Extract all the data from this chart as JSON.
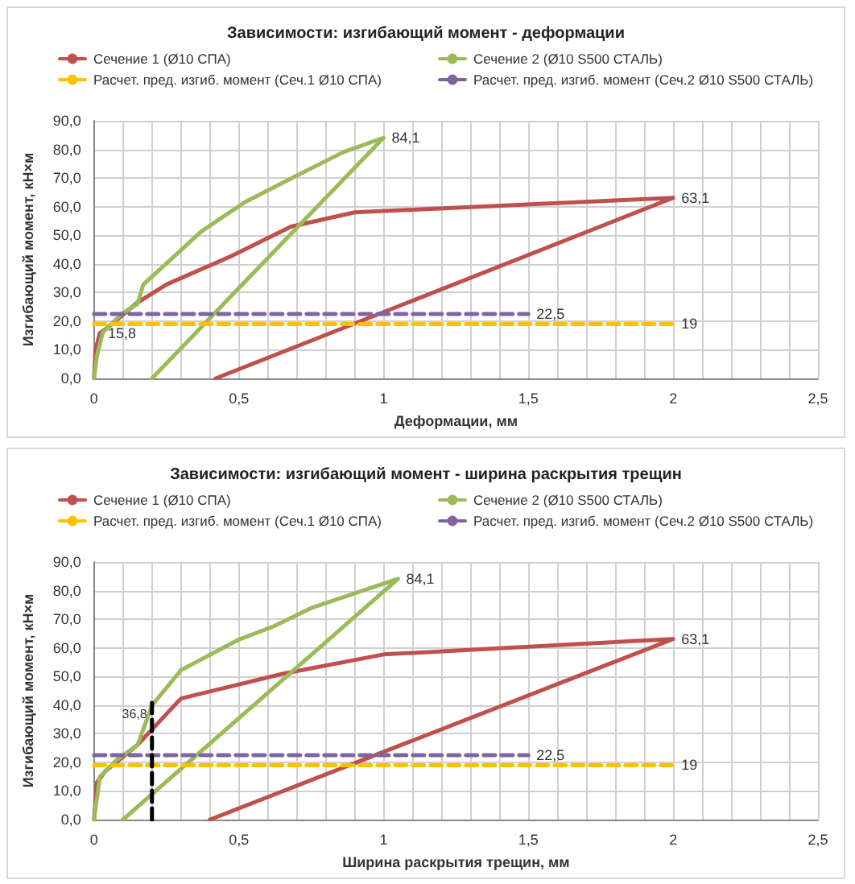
{
  "chart_data": [
    {
      "type": "line",
      "title": "Зависимости: изгибающий момент - деформации",
      "xlabel": "Деформации, мм",
      "ylabel": "Изгибающий момент, кН×м",
      "marker": "none",
      "grid": true,
      "legend": "top",
      "xlim": [
        0,
        2.5
      ],
      "ylim": [
        0,
        90
      ],
      "xticks": [
        {
          "value": 0,
          "label": "0"
        },
        {
          "value": 0.1,
          "label": null
        },
        {
          "value": 0.2,
          "label": null
        },
        {
          "value": 0.3,
          "label": null
        },
        {
          "value": 0.4,
          "label": null
        },
        {
          "value": 0.5,
          "label": "0,5"
        },
        {
          "value": 0.6,
          "label": null
        },
        {
          "value": 0.7,
          "label": null
        },
        {
          "value": 0.8,
          "label": null
        },
        {
          "value": 0.9,
          "label": null
        },
        {
          "value": 1,
          "label": "1"
        },
        {
          "value": 1.1,
          "label": null
        },
        {
          "value": 1.2,
          "label": null
        },
        {
          "value": 1.3,
          "label": null
        },
        {
          "value": 1.4,
          "label": null
        },
        {
          "value": 1.5,
          "label": "1,5"
        },
        {
          "value": 1.6,
          "label": null
        },
        {
          "value": 1.7,
          "label": null
        },
        {
          "value": 1.8,
          "label": null
        },
        {
          "value": 1.9,
          "label": null
        },
        {
          "value": 2,
          "label": "2"
        },
        {
          "value": 2.1,
          "label": null
        },
        {
          "value": 2.2,
          "label": null
        },
        {
          "value": 2.3,
          "label": null
        },
        {
          "value": 2.4,
          "label": null
        },
        {
          "value": 2.5,
          "label": "2,5"
        }
      ],
      "yticks": [
        {
          "value": 0,
          "label": "0,0"
        },
        {
          "value": 10,
          "label": "10,0"
        },
        {
          "value": 20,
          "label": "20,0"
        },
        {
          "value": 30,
          "label": "30,0"
        },
        {
          "value": 40,
          "label": "40,0"
        },
        {
          "value": 50,
          "label": "50,0"
        },
        {
          "value": 60,
          "label": "60,0"
        },
        {
          "value": 70,
          "label": "70,0"
        },
        {
          "value": 80,
          "label": "80,0"
        },
        {
          "value": 90,
          "label": "90,0"
        }
      ],
      "series": [
        {
          "name": "Сечение 1 (Ø10 СПА)",
          "color": "#c0504d",
          "line_style": "solid",
          "x": [
            0,
            0.005,
            0.02,
            0.05,
            0.15,
            0.25,
            0.48,
            0.68,
            0.9,
            2,
            0.42
          ],
          "values": [
            0,
            10,
            15.8,
            18,
            26.5,
            32.8,
            43,
            53,
            58,
            63.1,
            0
          ],
          "value_labels": [
            null,
            null,
            "15,8",
            null,
            null,
            null,
            null,
            null,
            null,
            "63,1",
            null
          ]
        },
        {
          "name": "Сечение 2 (Ø10 S500 СТАЛЬ)",
          "color": "#9bbb59",
          "line_style": "solid",
          "x": [
            0,
            0.01,
            0.03,
            0.095,
            0.15,
            0.17,
            0.27,
            0.37,
            0.52,
            0.68,
            0.86,
            1,
            0.2
          ],
          "values": [
            0,
            8,
            16,
            22.6,
            26,
            32.8,
            42,
            51.3,
            61.5,
            69.8,
            79,
            84.1,
            0
          ],
          "value_labels": [
            null,
            null,
            null,
            null,
            null,
            null,
            null,
            null,
            null,
            null,
            null,
            "84,1",
            null
          ]
        },
        {
          "name": "Расчет. пред. изгиб. момент (Сеч.1 Ø10 СПА)",
          "color": "#ffc000",
          "line_style": "dashed",
          "x": [
            0,
            2
          ],
          "values": [
            19,
            19
          ],
          "value_labels": [
            null,
            "19"
          ]
        },
        {
          "name": "Расчет. пред. изгиб. момент (Сеч.2 Ø10 S500 СТАЛЬ)",
          "color": "#8064a2",
          "line_style": "dashed",
          "x": [
            0,
            1.5
          ],
          "values": [
            22.5,
            22.5
          ],
          "value_labels": [
            null,
            "22,5"
          ]
        }
      ]
    },
    {
      "type": "line",
      "title": "Зависимости: изгибающий момент - ширина раскрытия трещин",
      "xlabel": "Ширина раскрытия трещин, мм",
      "ylabel": "Изгибающий момент, кН×м",
      "marker": "none",
      "grid": true,
      "legend": "top",
      "xlim": [
        0,
        2.5
      ],
      "ylim": [
        0,
        90
      ],
      "xticks": [
        {
          "value": 0,
          "label": "0"
        },
        {
          "value": 0.1,
          "label": null
        },
        {
          "value": 0.2,
          "label": null
        },
        {
          "value": 0.3,
          "label": null
        },
        {
          "value": 0.4,
          "label": null
        },
        {
          "value": 0.5,
          "label": "0,5"
        },
        {
          "value": 0.6,
          "label": null
        },
        {
          "value": 0.7,
          "label": null
        },
        {
          "value": 0.8,
          "label": null
        },
        {
          "value": 0.9,
          "label": null
        },
        {
          "value": 1,
          "label": "1"
        },
        {
          "value": 1.1,
          "label": null
        },
        {
          "value": 1.2,
          "label": null
        },
        {
          "value": 1.3,
          "label": null
        },
        {
          "value": 1.4,
          "label": null
        },
        {
          "value": 1.5,
          "label": "1,5"
        },
        {
          "value": 1.6,
          "label": null
        },
        {
          "value": 1.7,
          "label": null
        },
        {
          "value": 1.8,
          "label": null
        },
        {
          "value": 1.9,
          "label": null
        },
        {
          "value": 2,
          "label": "2"
        },
        {
          "value": 2.1,
          "label": null
        },
        {
          "value": 2.2,
          "label": null
        },
        {
          "value": 2.3,
          "label": null
        },
        {
          "value": 2.4,
          "label": null
        },
        {
          "value": 2.5,
          "label": "2,5"
        }
      ],
      "yticks": [
        {
          "value": 0,
          "label": "0,0"
        },
        {
          "value": 10,
          "label": "10,0"
        },
        {
          "value": 20,
          "label": "20,0"
        },
        {
          "value": 30,
          "label": "30,0"
        },
        {
          "value": 40,
          "label": "40,0"
        },
        {
          "value": 50,
          "label": "50,0"
        },
        {
          "value": 60,
          "label": "60,0"
        },
        {
          "value": 70,
          "label": "70,0"
        },
        {
          "value": 80,
          "label": "80,0"
        },
        {
          "value": 90,
          "label": "90,0"
        }
      ],
      "annotations": [
        {
          "text": "36,8",
          "x": 0.2,
          "y": 36.8
        }
      ],
      "series": [
        {
          "name": "Сечение 1 (Ø10 СПА)",
          "color": "#c0504d",
          "line_style": "solid",
          "x": [
            0,
            0.01,
            0.04,
            0.15,
            0.3,
            0.65,
            1,
            2,
            0.4
          ],
          "values": [
            0,
            13,
            17,
            26.1,
            42.3,
            50.9,
            57.7,
            63.1,
            0
          ],
          "value_labels": [
            null,
            null,
            null,
            null,
            null,
            null,
            null,
            "63,1",
            null
          ]
        },
        {
          "name": "Сечение 2 (Ø10 S500 СТАЛЬ)",
          "color": "#9bbb59",
          "line_style": "solid",
          "x": [
            0,
            0.02,
            0.08,
            0.15,
            0.2,
            0.3,
            0.5,
            0.62,
            0.75,
            1.05,
            0.1
          ],
          "values": [
            0,
            15,
            21,
            26,
            39.9,
            52.2,
            62.9,
            67.5,
            73.9,
            84.1,
            0
          ],
          "value_labels": [
            null,
            null,
            null,
            null,
            null,
            null,
            null,
            null,
            null,
            "84,1",
            null
          ]
        },
        {
          "name": "Расчет. пред. изгиб. момент (Сеч.1 Ø10 СПА)",
          "color": "#ffc000",
          "line_style": "dashed",
          "x": [
            0,
            2
          ],
          "values": [
            19,
            19
          ],
          "value_labels": [
            null,
            "19"
          ]
        },
        {
          "name": "Расчет. пред. изгиб. момент (Сеч.2 Ø10 S500 СТАЛЬ)",
          "color": "#8064a2",
          "line_style": "dashed",
          "x": [
            0,
            1.5
          ],
          "values": [
            22.5,
            22.5
          ],
          "value_labels": [
            null,
            "22,5"
          ]
        },
        {
          "color": "#000000",
          "line_style": "dashed",
          "x": [
            0.2,
            0.2
          ],
          "values": [
            0,
            40.8
          ]
        }
      ]
    }
  ]
}
